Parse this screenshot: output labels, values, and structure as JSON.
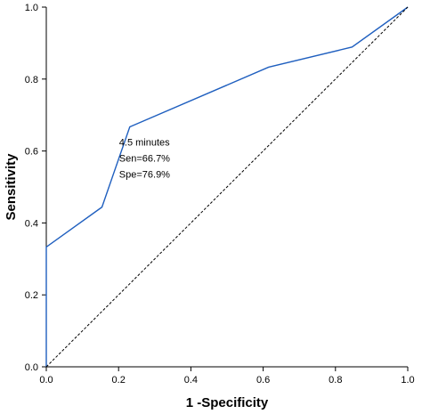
{
  "chart_data": {
    "type": "line",
    "title": "",
    "xlabel": "1 -Specificity",
    "ylabel": "Sensitivity",
    "xlim": [
      0,
      1
    ],
    "ylim": [
      0,
      1
    ],
    "x_ticks": [
      "0.0",
      "0.2",
      "0.4",
      "0.6",
      "0.8",
      "1.0"
    ],
    "y_ticks": [
      "0.0",
      "0.2",
      "0.4",
      "0.6",
      "0.8",
      "1.0"
    ],
    "grid": false,
    "legend": "none",
    "series": [
      {
        "style": "solid",
        "color": "#1f5fbf",
        "x": [
          0.0,
          0.0,
          0.154,
          0.231,
          0.615,
          0.846,
          1.0
        ],
        "y": [
          0.0,
          0.333,
          0.444,
          0.667,
          0.833,
          0.889,
          1.0
        ]
      },
      {
        "style": "dashed",
        "color": "#000000",
        "x": [
          0.0,
          1.0
        ],
        "y": [
          0.0,
          1.0
        ]
      }
    ],
    "annotation": {
      "lines": [
        "4.5 minutes",
        "Sen=66.7%",
        "Spe=76.9%"
      ],
      "anchor": [
        0.231,
        0.667
      ]
    }
  }
}
